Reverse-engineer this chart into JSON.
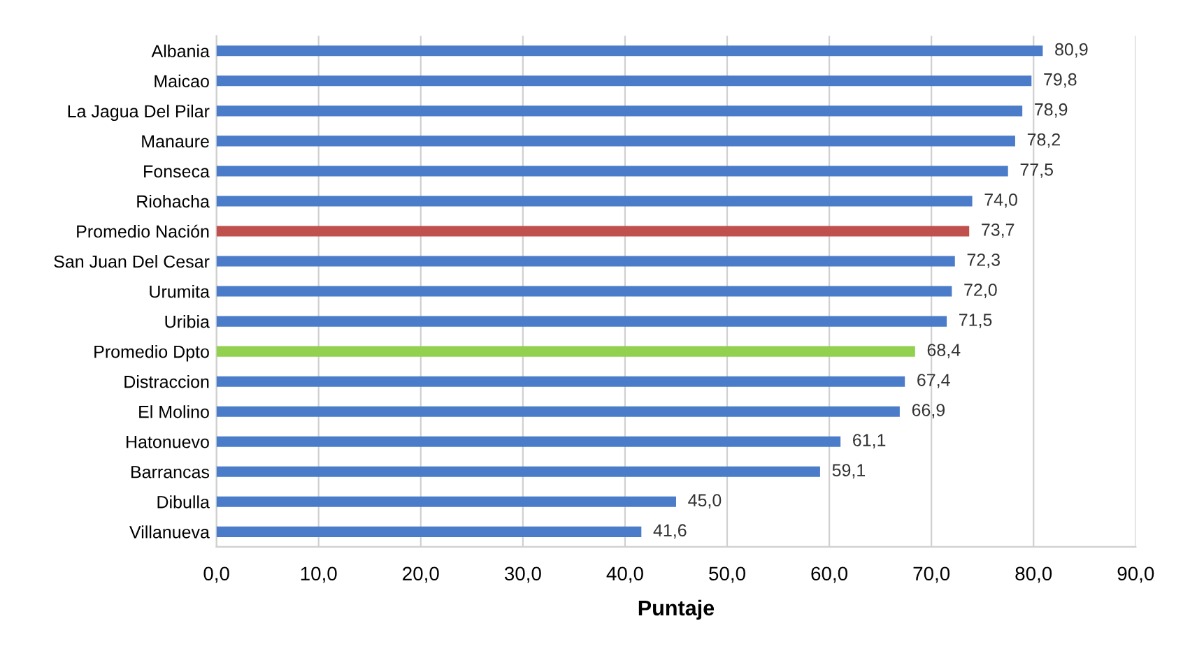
{
  "chart_data": {
    "type": "bar",
    "orientation": "horizontal",
    "xlabel": "Puntaje",
    "categories": [
      "Albania",
      "Maicao",
      "La Jagua Del Pilar",
      "Manaure",
      "Fonseca",
      "Riohacha",
      "Promedio Nación",
      "San Juan Del Cesar",
      "Urumita",
      "Uribia",
      "Promedio Dpto",
      "Distraccion",
      "El Molino",
      "Hatonuevo",
      "Barrancas",
      "Dibulla",
      "Villanueva"
    ],
    "values": [
      80.9,
      79.8,
      78.9,
      78.2,
      77.5,
      74.0,
      73.7,
      72.3,
      72.0,
      71.5,
      68.4,
      67.4,
      66.9,
      61.1,
      59.1,
      45.0,
      41.6
    ],
    "colors": [
      "#4a7cc9",
      "#4a7cc9",
      "#4a7cc9",
      "#4a7cc9",
      "#4a7cc9",
      "#4a7cc9",
      "#c0504d",
      "#4a7cc9",
      "#4a7cc9",
      "#4a7cc9",
      "#92d050",
      "#4a7cc9",
      "#4a7cc9",
      "#4a7cc9",
      "#4a7cc9",
      "#4a7cc9",
      "#4a7cc9"
    ],
    "value_labels": [
      "80,9",
      "79,8",
      "78,9",
      "78,2",
      "77,5",
      "74,0",
      "73,7",
      "72,3",
      "72,0",
      "71,5",
      "68,4",
      "67,4",
      "66,9",
      "61,1",
      "59,1",
      "45,0",
      "41,6"
    ],
    "xlim": [
      0,
      90
    ],
    "xticks": [
      {
        "value": 0,
        "label": "0,0"
      },
      {
        "value": 10,
        "label": "10,0"
      },
      {
        "value": 20,
        "label": "20,0"
      },
      {
        "value": 30,
        "label": "30,0"
      },
      {
        "value": 40,
        "label": "40,0"
      },
      {
        "value": 50,
        "label": "50,0"
      },
      {
        "value": 60,
        "label": "60,0"
      },
      {
        "value": 70,
        "label": "70,0"
      },
      {
        "value": 80,
        "label": "80,0"
      },
      {
        "value": 90,
        "label": "90,0"
      }
    ],
    "grid": "x",
    "legend": false
  }
}
